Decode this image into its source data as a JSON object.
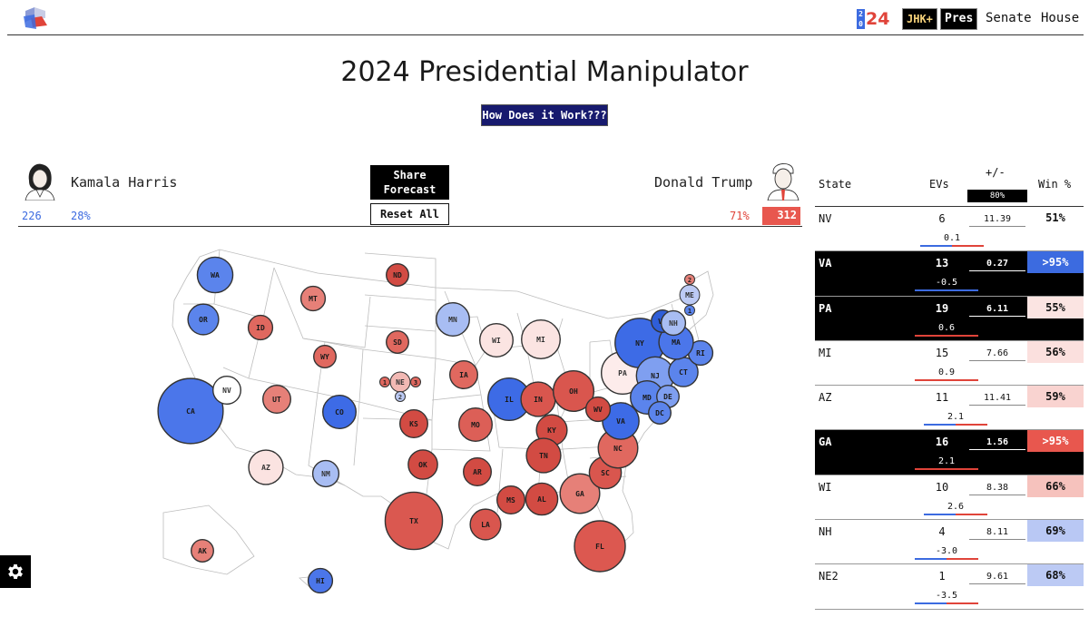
{
  "nav": {
    "year_stack": [
      "2",
      "0"
    ],
    "year_suffix": "24",
    "jhk_label": "JHK+",
    "pres_label": "Pres",
    "senate_label": "Senate",
    "house_label": "House"
  },
  "page_title": "2024 Presidential Manipulator",
  "how_button": "How Does it Work???",
  "candidates": {
    "dem": {
      "name": "Kamala Harris",
      "ev": "226",
      "win_pct": "28%"
    },
    "rep": {
      "name": "Donald Trump",
      "ev": "312",
      "win_pct": "71%"
    }
  },
  "buttons": {
    "share_line1": "Share",
    "share_line2": "Forecast",
    "reset": "Reset All"
  },
  "table": {
    "headers": {
      "state": "State",
      "evs": "EVs",
      "plusminus": "+/-",
      "slider_value": "80%",
      "win": "Win %"
    },
    "rows": [
      {
        "state": "NV",
        "ev": "6",
        "margin": "11.39",
        "shift": "0.1",
        "win": "51%",
        "dark": false,
        "win_bg": "#ffffff",
        "win_fg": "#111111",
        "shift_bar": "split"
      },
      {
        "state": "VA",
        "ev": "13",
        "margin": "0.27",
        "shift": "-0.5",
        "win": ">95%",
        "dark": true,
        "win_bg": "#3c6be0",
        "win_fg": "#ffffff",
        "shift_bar": "blue"
      },
      {
        "state": "PA",
        "ev": "19",
        "margin": "6.11",
        "shift": "0.6",
        "win": "55%",
        "dark": true,
        "win_bg": "#fbe4e2",
        "win_fg": "#111111",
        "shift_bar": "red"
      },
      {
        "state": "MI",
        "ev": "15",
        "margin": "7.66",
        "shift": "0.9",
        "win": "56%",
        "dark": false,
        "win_bg": "#fbe0de",
        "win_fg": "#111111",
        "shift_bar": "red"
      },
      {
        "state": "AZ",
        "ev": "11",
        "margin": "11.41",
        "shift": "2.1",
        "win": "59%",
        "dark": false,
        "win_bg": "#f9d3d0",
        "win_fg": "#111111",
        "shift_bar": "split"
      },
      {
        "state": "GA",
        "ev": "16",
        "margin": "1.56",
        "shift": "2.1",
        "win": ">95%",
        "dark": true,
        "win_bg": "#e8574e",
        "win_fg": "#ffffff",
        "shift_bar": "red"
      },
      {
        "state": "WI",
        "ev": "10",
        "margin": "8.38",
        "shift": "2.6",
        "win": "66%",
        "dark": false,
        "win_bg": "#f6c2bd",
        "win_fg": "#111111",
        "shift_bar": "split"
      },
      {
        "state": "NH",
        "ev": "4",
        "margin": "8.11",
        "shift": "-3.0",
        "win": "69%",
        "dark": false,
        "win_bg": "#b9c8f4",
        "win_fg": "#111111",
        "shift_bar": "split"
      },
      {
        "state": "NE2",
        "ev": "1",
        "margin": "9.61",
        "shift": "-3.5",
        "win": "68%",
        "dark": false,
        "win_bg": "#bccaf4",
        "win_fg": "#111111",
        "shift_bar": "split"
      }
    ]
  },
  "map_states": [
    {
      "abbr": "WA",
      "ev": 12,
      "color": "#5b84ec"
    },
    {
      "abbr": "OR",
      "ev": 8,
      "color": "#5b84ec"
    },
    {
      "abbr": "CA",
      "ev": 54,
      "color": "#4b76ea"
    },
    {
      "abbr": "NV",
      "ev": 6,
      "color": "#ffffff"
    },
    {
      "abbr": "ID",
      "ev": 4,
      "color": "#e0685f"
    },
    {
      "abbr": "MT",
      "ev": 4,
      "color": "#e68078"
    },
    {
      "abbr": "WY",
      "ev": 3,
      "color": "#e0685f"
    },
    {
      "abbr": "UT",
      "ev": 6,
      "color": "#e68078"
    },
    {
      "abbr": "AZ",
      "ev": 11,
      "color": "#fbe3e1"
    },
    {
      "abbr": "CO",
      "ev": 10,
      "color": "#3d6be6"
    },
    {
      "abbr": "NM",
      "ev": 5,
      "color": "#a8bdf3"
    },
    {
      "abbr": "ND",
      "ev": 3,
      "color": "#d24b43"
    },
    {
      "abbr": "SD",
      "ev": 3,
      "color": "#e0685f"
    },
    {
      "abbr": "NE",
      "ev": 2,
      "color": "#f2b9b4"
    },
    {
      "abbr": "1",
      "ev": 1,
      "color": "#e0685f"
    },
    {
      "abbr": "3",
      "ev": 1,
      "color": "#e0685f"
    },
    {
      "abbr": "2",
      "ev": 1,
      "color": "#bccaf4"
    },
    {
      "abbr": "KS",
      "ev": 6,
      "color": "#d24b43"
    },
    {
      "abbr": "OK",
      "ev": 7,
      "color": "#d24b43"
    },
    {
      "abbr": "TX",
      "ev": 40,
      "color": "#da5850"
    },
    {
      "abbr": "MN",
      "ev": 10,
      "color": "#a8bdf3"
    },
    {
      "abbr": "IA",
      "ev": 6,
      "color": "#e0685f"
    },
    {
      "abbr": "MO",
      "ev": 10,
      "color": "#dc5f57"
    },
    {
      "abbr": "AR",
      "ev": 6,
      "color": "#d24b43"
    },
    {
      "abbr": "LA",
      "ev": 8,
      "color": "#d9564e"
    },
    {
      "abbr": "WI",
      "ev": 10,
      "color": "#fbe4e2"
    },
    {
      "abbr": "IL",
      "ev": 19,
      "color": "#3d6be6"
    },
    {
      "abbr": "MI",
      "ev": 15,
      "color": "#fbe4e2"
    },
    {
      "abbr": "IN",
      "ev": 11,
      "color": "#d9564e"
    },
    {
      "abbr": "OH",
      "ev": 17,
      "color": "#d9564e"
    },
    {
      "abbr": "KY",
      "ev": 8,
      "color": "#d24b43"
    },
    {
      "abbr": "TN",
      "ev": 11,
      "color": "#d24b43"
    },
    {
      "abbr": "MS",
      "ev": 6,
      "color": "#d24b43"
    },
    {
      "abbr": "AL",
      "ev": 9,
      "color": "#d24b43"
    },
    {
      "abbr": "GA",
      "ev": 16,
      "color": "#e68078"
    },
    {
      "abbr": "FL",
      "ev": 30,
      "color": "#dc5850"
    },
    {
      "abbr": "SC",
      "ev": 9,
      "color": "#d9564e"
    },
    {
      "abbr": "NC",
      "ev": 16,
      "color": "#e0685f"
    },
    {
      "abbr": "VA",
      "ev": 13,
      "color": "#3d6be6"
    },
    {
      "abbr": "WV",
      "ev": 4,
      "color": "#d24b43"
    },
    {
      "abbr": "PA",
      "ev": 19,
      "color": "#fdeceb"
    },
    {
      "abbr": "NY",
      "ev": 28,
      "color": "#3d6be6"
    },
    {
      "abbr": "NJ",
      "ev": 14,
      "color": "#7f9ff0"
    },
    {
      "abbr": "MD",
      "ev": 10,
      "color": "#5b84ec"
    },
    {
      "abbr": "DE",
      "ev": 3,
      "color": "#7f9ff0"
    },
    {
      "abbr": "DC",
      "ev": 3,
      "color": "#5b84ec"
    },
    {
      "abbr": "CT",
      "ev": 7,
      "color": "#5b84ec"
    },
    {
      "abbr": "RI",
      "ev": 4,
      "color": "#5b84ec"
    },
    {
      "abbr": "MA",
      "ev": 11,
      "color": "#4b76ea"
    },
    {
      "abbr": "VT",
      "ev": 3,
      "color": "#2f5ed8"
    },
    {
      "abbr": "NH",
      "ev": 4,
      "color": "#a8bdf3"
    },
    {
      "abbr": "ME",
      "ev": 2,
      "color": "#bccaf4"
    },
    {
      "abbr": "2",
      "ev": 1,
      "color": "#e68078"
    },
    {
      "abbr": "1",
      "ev": 1,
      "color": "#5b84ec"
    },
    {
      "abbr": "AK",
      "ev": 3,
      "color": "#e68078"
    },
    {
      "abbr": "HI",
      "ev": 4,
      "color": "#4b76ea"
    }
  ]
}
